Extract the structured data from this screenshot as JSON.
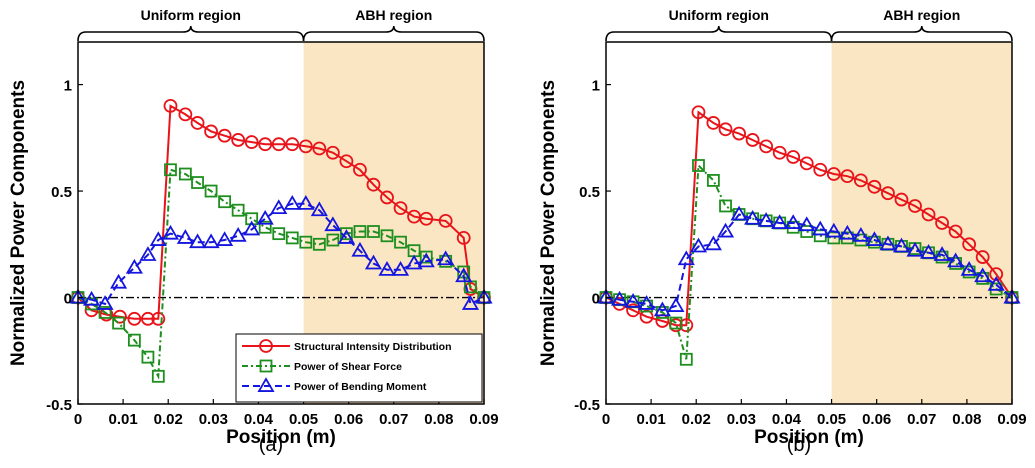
{
  "colors": {
    "sid": "#e8141a",
    "shear": "#1e8f1e",
    "bending": "#1515e0",
    "abh_shade": "#fbe6c4",
    "zero_line": "#000000"
  },
  "chart_data": [
    {
      "type": "line",
      "panel_label": "(a)",
      "xlabel": "Position (m)",
      "ylabel": "Normalized Power Components",
      "xlim": [
        0,
        0.09
      ],
      "ylim": [
        -0.5,
        1.2
      ],
      "x_ticks": [
        "0",
        "0.01",
        "0.02",
        "0.03",
        "0.04",
        "0.05",
        "0.06",
        "0.07",
        "0.08",
        "0.09"
      ],
      "x_tick_values": [
        0,
        0.01,
        0.02,
        0.03,
        0.04,
        0.05,
        0.06,
        0.07,
        0.08,
        0.09
      ],
      "y_ticks": [
        "-0.5",
        "0",
        "0.5",
        "1"
      ],
      "y_tick_values": [
        -0.5,
        0,
        0.5,
        1
      ],
      "regions": [
        {
          "label": "Uniform region",
          "x_start": 0,
          "x_end": 0.05
        },
        {
          "label": "ABH region",
          "x_start": 0.05,
          "x_end": 0.09
        }
      ],
      "shaded_x": [
        0.05,
        0.09
      ],
      "zero_line": true,
      "legend": {
        "placement": "bottom-right"
      },
      "series": [
        {
          "name": "Structural Intensity Distribution",
          "color_key": "sid",
          "dash": "solid",
          "marker": "circle",
          "x": [
            0,
            0.003,
            0.0063,
            0.0093,
            0.0125,
            0.0155,
            0.0178,
            0.0205,
            0.0238,
            0.0265,
            0.0295,
            0.0325,
            0.0355,
            0.0385,
            0.0415,
            0.0445,
            0.0475,
            0.0505,
            0.0535,
            0.0565,
            0.0595,
            0.0625,
            0.0655,
            0.0685,
            0.0715,
            0.0745,
            0.0772,
            0.0815,
            0.0855,
            0.087,
            0.09
          ],
          "y": [
            0,
            -0.06,
            -0.08,
            -0.09,
            -0.1,
            -0.1,
            -0.1,
            0.9,
            0.86,
            0.82,
            0.78,
            0.76,
            0.74,
            0.73,
            0.72,
            0.72,
            0.72,
            0.71,
            0.7,
            0.68,
            0.64,
            0.6,
            0.53,
            0.47,
            0.42,
            0.38,
            0.37,
            0.36,
            0.28,
            0.04,
            0
          ]
        },
        {
          "name": "Power of Shear Force",
          "color_key": "shear",
          "dash": "dashdot",
          "marker": "square",
          "x": [
            0,
            0.003,
            0.006,
            0.009,
            0.0125,
            0.0155,
            0.0178,
            0.0205,
            0.0238,
            0.0265,
            0.0295,
            0.0325,
            0.0355,
            0.0385,
            0.0415,
            0.0445,
            0.0475,
            0.0505,
            0.0535,
            0.0565,
            0.0595,
            0.0625,
            0.0655,
            0.0685,
            0.0715,
            0.0745,
            0.0772,
            0.0815,
            0.0855,
            0.087,
            0.09
          ],
          "y": [
            0,
            -0.03,
            -0.07,
            -0.12,
            -0.2,
            -0.28,
            -0.37,
            0.6,
            0.58,
            0.54,
            0.5,
            0.45,
            0.41,
            0.37,
            0.33,
            0.3,
            0.28,
            0.26,
            0.25,
            0.27,
            0.3,
            0.31,
            0.31,
            0.29,
            0.26,
            0.22,
            0.19,
            0.17,
            0.12,
            0.05,
            0
          ]
        },
        {
          "name": "Power of Bending Moment",
          "color_key": "bending",
          "dash": "dashed",
          "marker": "triangle",
          "x": [
            0,
            0.003,
            0.006,
            0.009,
            0.0125,
            0.0155,
            0.0178,
            0.0205,
            0.0238,
            0.0265,
            0.0295,
            0.0325,
            0.0355,
            0.0385,
            0.0415,
            0.0445,
            0.0475,
            0.0505,
            0.0535,
            0.0565,
            0.0595,
            0.0625,
            0.0655,
            0.0685,
            0.0715,
            0.0745,
            0.0772,
            0.0815,
            0.0855,
            0.087,
            0.09
          ],
          "y": [
            0,
            -0.01,
            -0.03,
            0.07,
            0.14,
            0.2,
            0.27,
            0.3,
            0.28,
            0.26,
            0.26,
            0.27,
            0.29,
            0.32,
            0.37,
            0.42,
            0.44,
            0.44,
            0.41,
            0.34,
            0.28,
            0.22,
            0.16,
            0.13,
            0.13,
            0.16,
            0.17,
            0.18,
            0.1,
            -0.03,
            0
          ]
        }
      ]
    },
    {
      "type": "line",
      "panel_label": "(b)",
      "xlabel": "Position (m)",
      "ylabel": "Normalized Power Components",
      "xlim": [
        0,
        0.09
      ],
      "ylim": [
        -0.5,
        1.2
      ],
      "x_ticks": [
        "0",
        "0.01",
        "0.02",
        "0.03",
        "0.04",
        "0.05",
        "0.06",
        "0.07",
        "0.08",
        "0.09"
      ],
      "x_tick_values": [
        0,
        0.01,
        0.02,
        0.03,
        0.04,
        0.05,
        0.06,
        0.07,
        0.08,
        0.09
      ],
      "y_ticks": [
        "-0.5",
        "0",
        "0.5",
        "1"
      ],
      "y_tick_values": [
        -0.5,
        0,
        0.5,
        1
      ],
      "regions": [
        {
          "label": "Uniform region",
          "x_start": 0,
          "x_end": 0.05
        },
        {
          "label": "ABH region",
          "x_start": 0.05,
          "x_end": 0.09
        }
      ],
      "shaded_x": [
        0.05,
        0.09
      ],
      "zero_line": true,
      "series": [
        {
          "name": "Structural Intensity Distribution",
          "color_key": "sid",
          "dash": "solid",
          "marker": "circle",
          "x": [
            0,
            0.003,
            0.006,
            0.009,
            0.0125,
            0.0155,
            0.0178,
            0.0205,
            0.0238,
            0.0265,
            0.0295,
            0.0325,
            0.0355,
            0.0385,
            0.0415,
            0.0445,
            0.0475,
            0.0505,
            0.0535,
            0.0565,
            0.0595,
            0.0625,
            0.0655,
            0.0685,
            0.0715,
            0.0745,
            0.0775,
            0.0805,
            0.0835,
            0.0865,
            0.09
          ],
          "y": [
            0,
            -0.03,
            -0.06,
            -0.09,
            -0.11,
            -0.13,
            -0.13,
            0.87,
            0.82,
            0.79,
            0.77,
            0.74,
            0.71,
            0.68,
            0.66,
            0.63,
            0.6,
            0.58,
            0.57,
            0.55,
            0.52,
            0.49,
            0.46,
            0.43,
            0.39,
            0.35,
            0.31,
            0.25,
            0.19,
            0.11,
            0
          ]
        },
        {
          "name": "Power of Shear Force",
          "color_key": "shear",
          "dash": "dashdot",
          "marker": "square",
          "x": [
            0,
            0.003,
            0.006,
            0.009,
            0.0125,
            0.0155,
            0.0178,
            0.0205,
            0.0238,
            0.0265,
            0.0295,
            0.0325,
            0.0355,
            0.0385,
            0.0415,
            0.0445,
            0.0475,
            0.0505,
            0.0535,
            0.0565,
            0.0595,
            0.0625,
            0.0655,
            0.0685,
            0.0715,
            0.0745,
            0.0775,
            0.0805,
            0.0835,
            0.0865,
            0.09
          ],
          "y": [
            0,
            -0.01,
            -0.02,
            -0.04,
            -0.07,
            -0.12,
            -0.29,
            0.62,
            0.55,
            0.43,
            0.39,
            0.37,
            0.36,
            0.35,
            0.33,
            0.31,
            0.29,
            0.28,
            0.28,
            0.27,
            0.26,
            0.25,
            0.24,
            0.23,
            0.21,
            0.19,
            0.16,
            0.12,
            0.09,
            0.04,
            0
          ]
        },
        {
          "name": "Power of Bending Moment",
          "color_key": "bending",
          "dash": "dashed",
          "marker": "triangle",
          "x": [
            0,
            0.003,
            0.006,
            0.009,
            0.0125,
            0.0155,
            0.0178,
            0.0205,
            0.0238,
            0.0265,
            0.0295,
            0.0325,
            0.0355,
            0.0385,
            0.0415,
            0.0445,
            0.0475,
            0.0505,
            0.0535,
            0.0565,
            0.0595,
            0.0625,
            0.0655,
            0.0685,
            0.0715,
            0.0745,
            0.0775,
            0.0805,
            0.0835,
            0.0865,
            0.09
          ],
          "y": [
            0,
            -0.01,
            -0.02,
            -0.03,
            -0.06,
            -0.04,
            0.18,
            0.24,
            0.25,
            0.31,
            0.39,
            0.37,
            0.36,
            0.35,
            0.35,
            0.34,
            0.32,
            0.31,
            0.3,
            0.29,
            0.27,
            0.25,
            0.24,
            0.22,
            0.21,
            0.2,
            0.17,
            0.13,
            0.1,
            0.06,
            0
          ]
        }
      ]
    }
  ]
}
